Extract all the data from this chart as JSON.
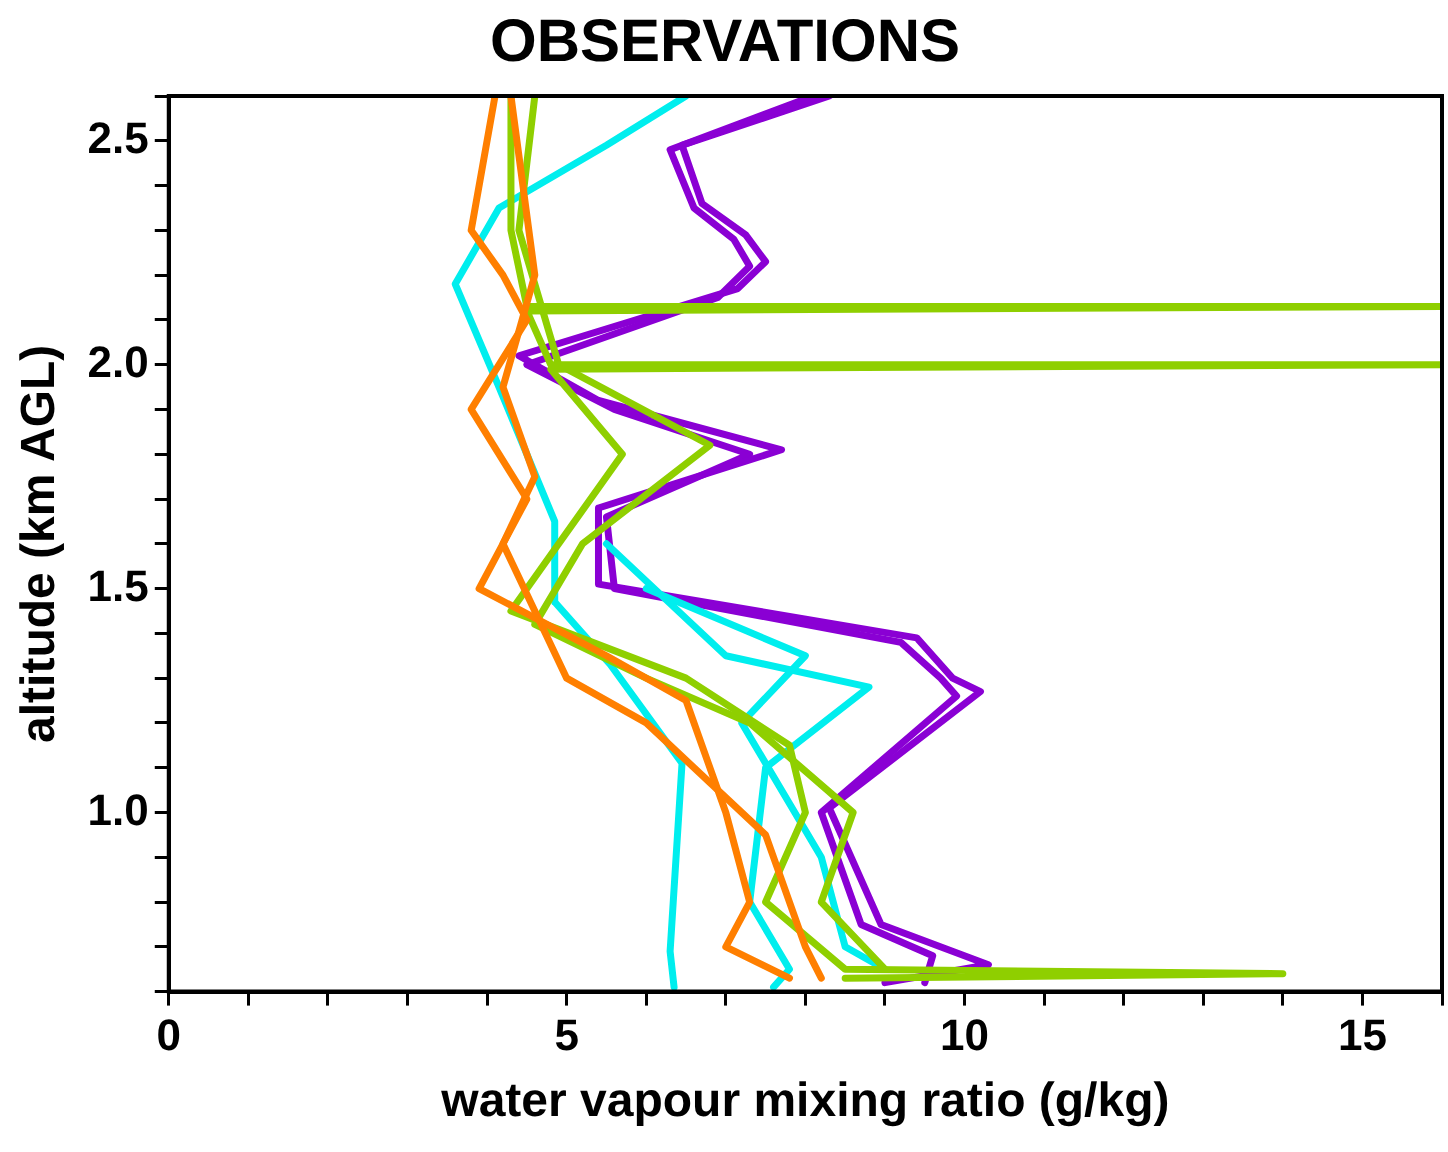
{
  "chart_data": {
    "type": "line",
    "title": "OBSERVATIONS",
    "xlabel": "water vapour mixing ratio (g/kg)",
    "ylabel": "altitude (km AGL)",
    "xlim": [
      0,
      16
    ],
    "ylim": [
      0.6,
      2.6
    ],
    "xticks": [
      0,
      {
        "value": 1,
        "label": null
      },
      {
        "value": 2,
        "label": null
      },
      {
        "value": 3,
        "label": null
      },
      {
        "value": 4,
        "label": null
      },
      5,
      {
        "value": 6,
        "label": null
      },
      {
        "value": 7,
        "label": null
      },
      {
        "value": 8,
        "label": null
      },
      {
        "value": 9,
        "label": null
      },
      10,
      {
        "value": 11,
        "label": null
      },
      {
        "value": 12,
        "label": null
      },
      {
        "value": 13,
        "label": null
      },
      {
        "value": 14,
        "label": null
      },
      15,
      {
        "value": 16,
        "label": null
      }
    ],
    "yticks": [
      {
        "value": 0.6,
        "label": null
      },
      {
        "value": 0.7,
        "label": null
      },
      {
        "value": 0.8,
        "label": null
      },
      {
        "value": 0.9,
        "label": null
      },
      {
        "value": 1.0,
        "label": "1.0"
      },
      {
        "value": 1.1,
        "label": null
      },
      {
        "value": 1.2,
        "label": null
      },
      {
        "value": 1.3,
        "label": null
      },
      {
        "value": 1.4,
        "label": null
      },
      {
        "value": 1.5,
        "label": "1.5"
      },
      {
        "value": 1.6,
        "label": null
      },
      {
        "value": 1.7,
        "label": null
      },
      {
        "value": 1.8,
        "label": null
      },
      {
        "value": 1.9,
        "label": null
      },
      {
        "value": 2.0,
        "label": "2.0"
      },
      {
        "value": 2.1,
        "label": null
      },
      {
        "value": 2.2,
        "label": null
      },
      {
        "value": 2.3,
        "label": null
      },
      {
        "value": 2.4,
        "label": null
      },
      {
        "value": 2.5,
        "label": "2.5"
      },
      {
        "value": 2.6,
        "label": null
      }
    ],
    "grid": false,
    "legend": false,
    "marker": "none",
    "line_style": "solid",
    "series": [
      {
        "color": "#ff7f00",
        "x": [
          4.1,
          3.8,
          4.2,
          4.5,
          3.8,
          4.5,
          3.9,
          5.5,
          6.5,
          7.0,
          7.3,
          7.0,
          7.8
        ],
        "values": [
          2.6,
          2.3,
          2.2,
          2.1,
          1.9,
          1.7,
          1.5,
          1.35,
          1.25,
          1.0,
          0.8,
          0.7,
          0.63
        ]
      },
      {
        "color": "#ff7f00",
        "x": [
          4.3,
          4.6,
          4.2,
          4.6,
          4.2,
          5.0,
          6.0,
          7.5,
          8.0,
          8.2
        ],
        "values": [
          2.6,
          2.2,
          1.95,
          1.75,
          1.6,
          1.3,
          1.2,
          0.95,
          0.7,
          0.63
        ]
      },
      {
        "color": "#8fcf00",
        "x": [
          4.3,
          4.3,
          4.5,
          16,
          4.5,
          4.8,
          16,
          4.8,
          5.7,
          4.9,
          4.3,
          6.5,
          7.8,
          8.0,
          7.5,
          8.5,
          14.0,
          8.5
        ],
        "values": [
          2.6,
          2.3,
          2.13,
          2.13,
          2.12,
          2.0,
          2.0,
          1.99,
          1.8,
          1.6,
          1.45,
          1.3,
          1.15,
          1.0,
          0.8,
          0.65,
          0.64,
          0.63
        ]
      },
      {
        "color": "#8fcf00",
        "x": [
          4.6,
          4.4,
          4.9,
          6.8,
          5.2,
          4.6,
          6.0,
          7.3,
          8.6,
          8.2,
          9.0
        ],
        "values": [
          2.6,
          2.3,
          2.0,
          1.82,
          1.6,
          1.42,
          1.3,
          1.2,
          1.0,
          0.8,
          0.65
        ]
      },
      {
        "color": "#00eeee",
        "x": [
          6.5,
          5.5,
          4.15,
          3.6,
          4.15,
          4.85,
          4.85,
          5.55,
          6.45,
          6.3,
          6.35
        ],
        "values": [
          2.6,
          2.49,
          2.35,
          2.18,
          1.95,
          1.65,
          1.47,
          1.33,
          1.11,
          0.69,
          0.61
        ]
      },
      {
        "color": "#00eeee",
        "x": [
          5.5,
          7.0,
          8.8,
          7.5,
          7.3,
          7.8,
          7.6
        ],
        "values": [
          1.6,
          1.35,
          1.28,
          1.1,
          0.8,
          0.65,
          0.61
        ]
      },
      {
        "color": "#00eeee",
        "x": [
          6.0,
          8.0,
          7.2,
          8.2,
          8.5,
          9.0
        ],
        "values": [
          1.5,
          1.35,
          1.2,
          0.9,
          0.7,
          0.65
        ]
      },
      {
        "color": "#8a00d4",
        "x": [
          8.3,
          6.45,
          6.7,
          7.25,
          7.5,
          7.15,
          4.4,
          5.4,
          7.7,
          5.4,
          5.4,
          9.4,
          9.85,
          10.2,
          8.3,
          8.95,
          10.3,
          9.0
        ],
        "values": [
          2.6,
          2.49,
          2.36,
          2.29,
          2.23,
          2.17,
          2.02,
          1.92,
          1.81,
          1.68,
          1.51,
          1.39,
          1.3,
          1.27,
          1.01,
          0.75,
          0.66,
          0.62
        ]
      },
      {
        "color": "#8a00d4",
        "x": [
          8.1,
          6.3,
          6.6,
          7.1,
          7.3,
          6.9,
          4.5,
          5.6,
          7.3,
          5.5,
          5.6,
          9.2,
          9.7,
          9.9,
          8.2,
          8.7,
          9.6,
          9.5
        ],
        "values": [
          2.6,
          2.48,
          2.35,
          2.28,
          2.22,
          2.15,
          2.0,
          1.9,
          1.8,
          1.66,
          1.5,
          1.38,
          1.3,
          1.26,
          1.0,
          0.75,
          0.68,
          0.62
        ]
      }
    ]
  }
}
